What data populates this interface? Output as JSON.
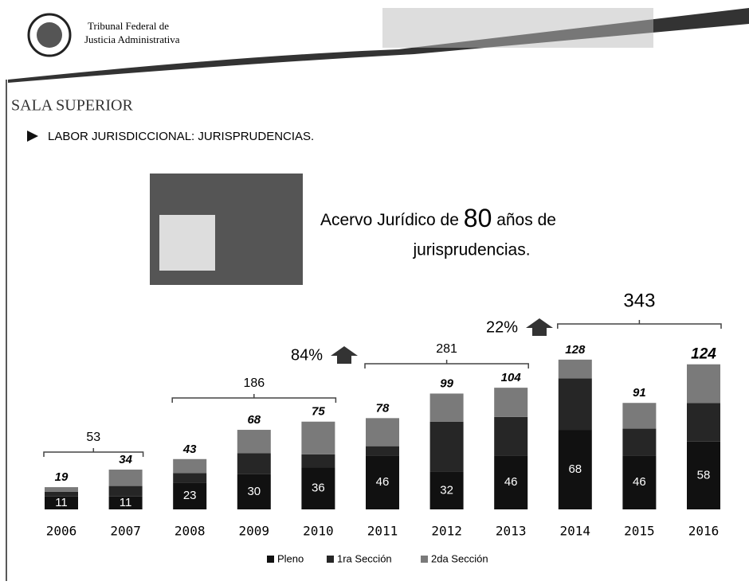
{
  "header": {
    "line1": "Tribunal Federal de",
    "line2": "Justicia Administrativa"
  },
  "section": "SALA SUPERIOR",
  "subtitle": "LABOR JURISDICCIONAL: JURISPRUDENCIAS.",
  "headline": {
    "before": "Acervo Jurídico de",
    "number": "80",
    "after": "años de",
    "line2": "jurisprudencias."
  },
  "chart_data": {
    "type": "bar",
    "stacked": true,
    "categories": [
      "2006",
      "2007",
      "2008",
      "2009",
      "2010",
      "2011",
      "2012",
      "2013",
      "2014",
      "2015",
      "2016"
    ],
    "series": [
      {
        "name": "Pleno",
        "color": "#111111",
        "values": [
          11,
          11,
          23,
          30,
          36,
          46,
          32,
          46,
          68,
          46,
          58
        ]
      },
      {
        "name": "1ra Sección",
        "color": "#262626",
        "values": [
          4,
          9,
          8,
          18,
          11,
          8,
          43,
          33,
          44,
          23,
          33
        ]
      },
      {
        "name": "2da Sección",
        "color": "#7a7a7a",
        "values": [
          4,
          14,
          12,
          20,
          28,
          24,
          24,
          25,
          16,
          22,
          33
        ]
      }
    ],
    "totals": [
      19,
      34,
      43,
      68,
      75,
      78,
      99,
      104,
      128,
      91,
      124
    ],
    "brackets": [
      53,
      186,
      281,
      343
    ],
    "growth": [
      "84%",
      "22%"
    ]
  }
}
